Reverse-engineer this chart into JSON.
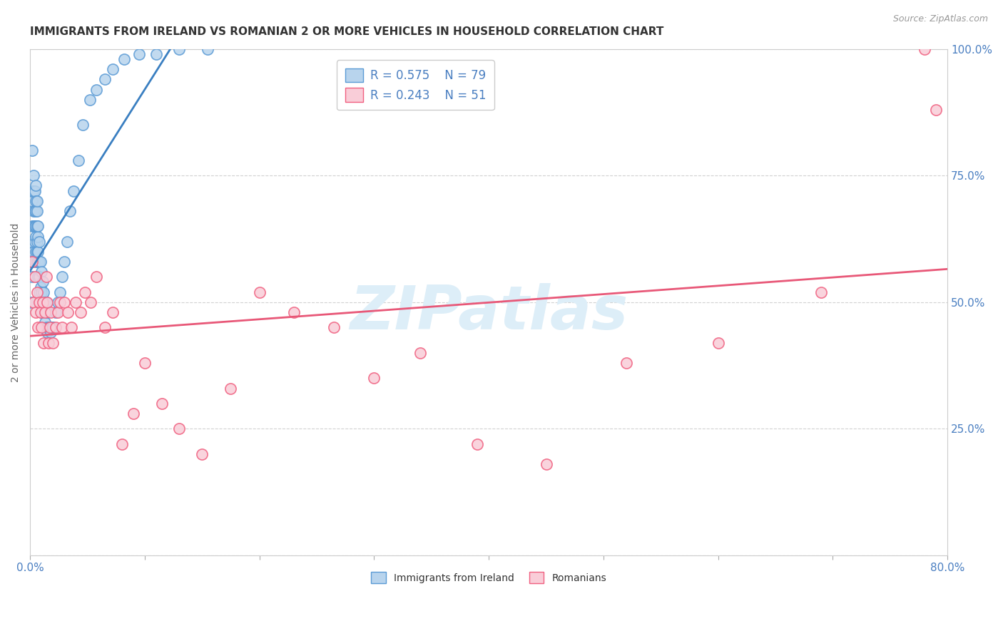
{
  "title": "IMMIGRANTS FROM IRELAND VS ROMANIAN 2 OR MORE VEHICLES IN HOUSEHOLD CORRELATION CHART",
  "source": "Source: ZipAtlas.com",
  "xlabel": "",
  "ylabel": "2 or more Vehicles in Household",
  "xlim": [
    0.0,
    0.8
  ],
  "ylim": [
    0.0,
    1.0
  ],
  "xticks": [
    0.0,
    0.1,
    0.2,
    0.3,
    0.4,
    0.5,
    0.6,
    0.7,
    0.8
  ],
  "xticklabels": [
    "0.0%",
    "",
    "",
    "",
    "",
    "",
    "",
    "",
    "80.0%"
  ],
  "yticks": [
    0.0,
    0.25,
    0.5,
    0.75,
    1.0
  ],
  "yticklabels_right": [
    "",
    "25.0%",
    "50.0%",
    "75.0%",
    "100.0%"
  ],
  "legend1_r": "R = 0.575",
  "legend1_n": "N = 79",
  "legend2_r": "R = 0.243",
  "legend2_n": "N = 51",
  "ireland_color": "#b8d4ed",
  "romania_color": "#f9cdd8",
  "ireland_edge_color": "#5b9bd5",
  "romania_edge_color": "#f06080",
  "ireland_line_color": "#3a7fc1",
  "romania_line_color": "#e85878",
  "watermark": "ZIPatlas",
  "watermark_color": "#ddeef8",
  "background_color": "#ffffff",
  "title_fontsize": 11,
  "ylabel_fontsize": 10,
  "tick_fontsize": 11,
  "legend_fontsize": 12,
  "ireland_scatter_x": [
    0.001,
    0.001,
    0.001,
    0.002,
    0.002,
    0.002,
    0.002,
    0.002,
    0.003,
    0.003,
    0.003,
    0.003,
    0.003,
    0.004,
    0.004,
    0.004,
    0.004,
    0.004,
    0.005,
    0.005,
    0.005,
    0.005,
    0.005,
    0.005,
    0.006,
    0.006,
    0.006,
    0.006,
    0.006,
    0.006,
    0.007,
    0.007,
    0.007,
    0.007,
    0.007,
    0.008,
    0.008,
    0.008,
    0.008,
    0.009,
    0.009,
    0.009,
    0.01,
    0.01,
    0.01,
    0.011,
    0.011,
    0.012,
    0.012,
    0.013,
    0.013,
    0.014,
    0.014,
    0.015,
    0.015,
    0.016,
    0.017,
    0.018,
    0.019,
    0.02,
    0.022,
    0.024,
    0.026,
    0.028,
    0.03,
    0.032,
    0.035,
    0.038,
    0.042,
    0.046,
    0.052,
    0.058,
    0.065,
    0.072,
    0.082,
    0.095,
    0.11,
    0.13,
    0.155
  ],
  "ireland_scatter_y": [
    0.5,
    0.58,
    0.62,
    0.55,
    0.65,
    0.7,
    0.72,
    0.8,
    0.6,
    0.65,
    0.68,
    0.72,
    0.75,
    0.58,
    0.62,
    0.65,
    0.68,
    0.72,
    0.6,
    0.63,
    0.65,
    0.68,
    0.7,
    0.73,
    0.58,
    0.6,
    0.62,
    0.65,
    0.68,
    0.7,
    0.55,
    0.58,
    0.6,
    0.63,
    0.65,
    0.52,
    0.55,
    0.58,
    0.62,
    0.5,
    0.53,
    0.58,
    0.48,
    0.52,
    0.56,
    0.5,
    0.54,
    0.48,
    0.52,
    0.46,
    0.5,
    0.45,
    0.5,
    0.44,
    0.48,
    0.45,
    0.45,
    0.44,
    0.45,
    0.45,
    0.48,
    0.5,
    0.52,
    0.55,
    0.58,
    0.62,
    0.68,
    0.72,
    0.78,
    0.85,
    0.9,
    0.92,
    0.94,
    0.96,
    0.98,
    0.99,
    0.99,
    1.0,
    1.0
  ],
  "romania_scatter_x": [
    0.002,
    0.003,
    0.004,
    0.005,
    0.006,
    0.007,
    0.008,
    0.009,
    0.01,
    0.011,
    0.012,
    0.013,
    0.014,
    0.015,
    0.016,
    0.017,
    0.018,
    0.02,
    0.022,
    0.024,
    0.026,
    0.028,
    0.03,
    0.033,
    0.036,
    0.04,
    0.044,
    0.048,
    0.053,
    0.058,
    0.065,
    0.072,
    0.08,
    0.09,
    0.1,
    0.115,
    0.13,
    0.15,
    0.175,
    0.2,
    0.23,
    0.265,
    0.3,
    0.34,
    0.39,
    0.45,
    0.52,
    0.6,
    0.69,
    0.78,
    0.79
  ],
  "romania_scatter_y": [
    0.58,
    0.5,
    0.55,
    0.48,
    0.52,
    0.45,
    0.5,
    0.48,
    0.45,
    0.5,
    0.42,
    0.48,
    0.55,
    0.5,
    0.42,
    0.45,
    0.48,
    0.42,
    0.45,
    0.48,
    0.5,
    0.45,
    0.5,
    0.48,
    0.45,
    0.5,
    0.48,
    0.52,
    0.5,
    0.55,
    0.45,
    0.48,
    0.22,
    0.28,
    0.38,
    0.3,
    0.25,
    0.2,
    0.33,
    0.52,
    0.48,
    0.45,
    0.35,
    0.4,
    0.22,
    0.18,
    0.38,
    0.42,
    0.52,
    1.0,
    0.88
  ]
}
